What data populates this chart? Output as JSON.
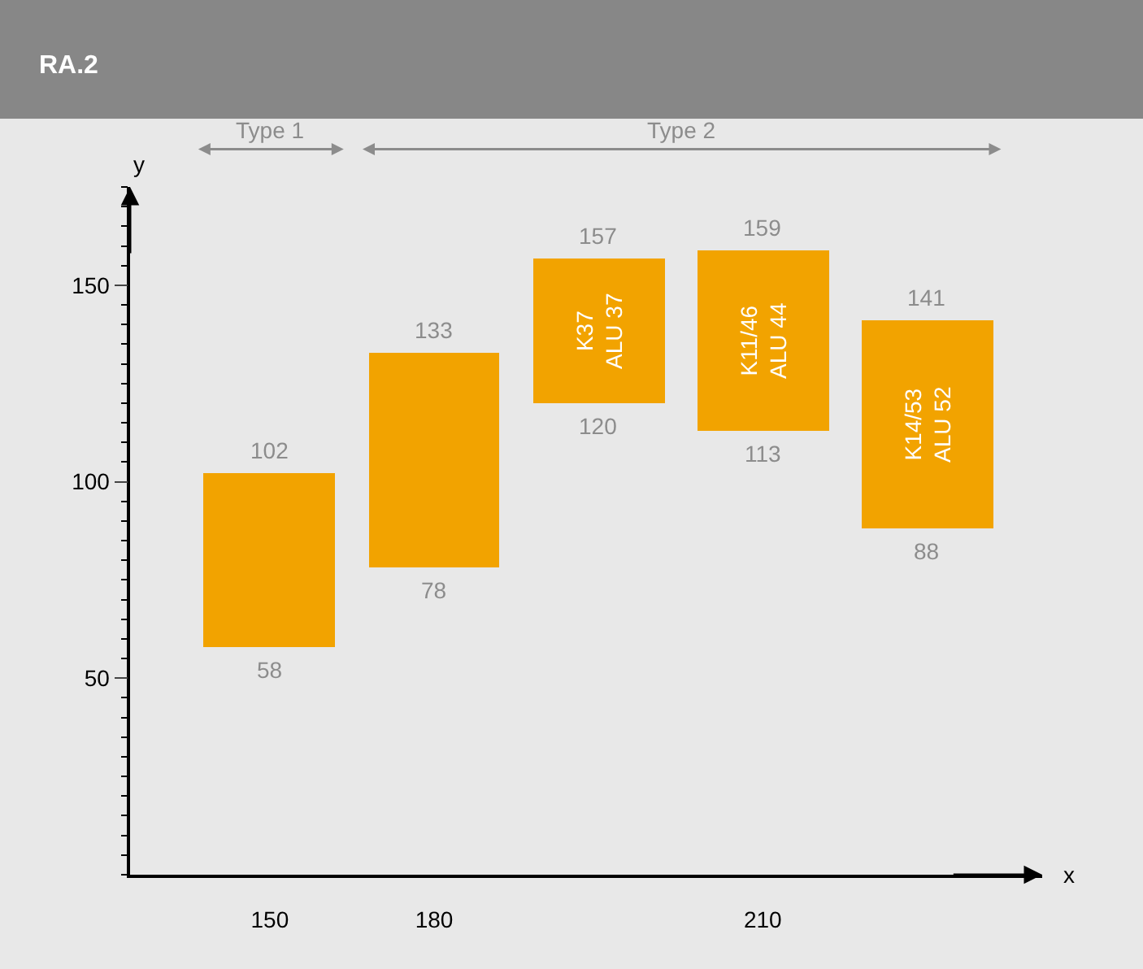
{
  "chart_data": {
    "type": "bar",
    "title": "RA.2",
    "xlabel": "x",
    "ylabel": "y",
    "categories": [
      "150",
      "180",
      null,
      "210",
      null
    ],
    "base": [
      58,
      78,
      120,
      113,
      88
    ],
    "values": [
      44,
      55,
      37,
      46,
      53
    ],
    "value_labels": [
      null,
      null,
      "K37\nALU 37",
      "K11/46\nALU 44",
      "K14/53\nALU 52"
    ],
    "color": "#f2a300",
    "ylim": [
      0,
      175
    ],
    "yticks": [
      50,
      100,
      150
    ],
    "grid": false,
    "legend": false,
    "annotations": [
      "Type 1",
      "Type 2",
      {
        "text": "102",
        "x": "150",
        "y": 102
      },
      {
        "text": "58",
        "x": "150",
        "y": 58
      },
      {
        "text": "133",
        "x": "180",
        "y": 133
      },
      {
        "text": "78",
        "x": "180",
        "y": 78
      },
      {
        "text": "157",
        "y": 157
      },
      {
        "text": "120",
        "y": 120
      },
      {
        "text": "159",
        "x": "210",
        "y": 159
      },
      {
        "text": "113",
        "x": "210",
        "y": 113
      },
      {
        "text": "141",
        "y": 141
      },
      {
        "text": "88",
        "y": 88
      }
    ]
  }
}
